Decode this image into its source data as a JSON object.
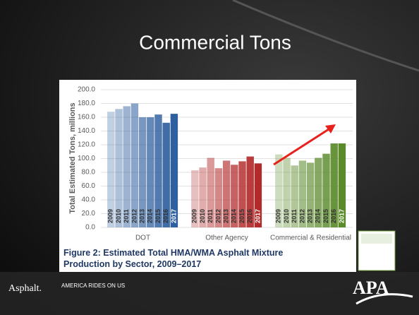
{
  "slide": {
    "title": "Commercial Tons",
    "footer_logo": "Asphalt.",
    "tagline": "AMERICA RIDES ON US",
    "apa_logo": "APA"
  },
  "chart_data": {
    "type": "bar",
    "title": "Figure 2: Estimated Total HMA/WMA Asphalt Mixture Production by Sector, 2009–2017",
    "y_label": "Total Estimated Tons, millions",
    "categories": [
      "2009",
      "2010",
      "2011",
      "2012",
      "2013",
      "2014",
      "2015",
      "2016",
      "2017"
    ],
    "series": [
      {
        "name": "DOT",
        "color": "#2e5f9e",
        "values": [
          168,
          172,
          176,
          180,
          160,
          160,
          164,
          152,
          165
        ]
      },
      {
        "name": "Other Agency",
        "color": "#b22a2a",
        "values": [
          83,
          87,
          101,
          86,
          97,
          91,
          96,
          103,
          93
        ]
      },
      {
        "name": "Commercial & Residential",
        "color": "#5a8a2a",
        "values": [
          106,
          101,
          90,
          97,
          94,
          101,
          107,
          122,
          122
        ]
      }
    ],
    "ylim": [
      0,
      200
    ],
    "yticks": [
      {
        "value": 0,
        "label": "0.0"
      },
      {
        "value": 20,
        "label": "20.0"
      },
      {
        "value": 40,
        "label": "40.0"
      },
      {
        "value": 60,
        "label": "60.0"
      },
      {
        "value": 80,
        "label": "80.0"
      },
      {
        "value": 100,
        "label": "100.0"
      },
      {
        "value": 120,
        "label": "120.0"
      },
      {
        "value": 140,
        "label": "140.0"
      },
      {
        "value": 160,
        "label": "160.0"
      },
      {
        "value": 180,
        "label": "180.0"
      },
      {
        "value": 200,
        "label": "200.0"
      }
    ],
    "grid": true
  }
}
